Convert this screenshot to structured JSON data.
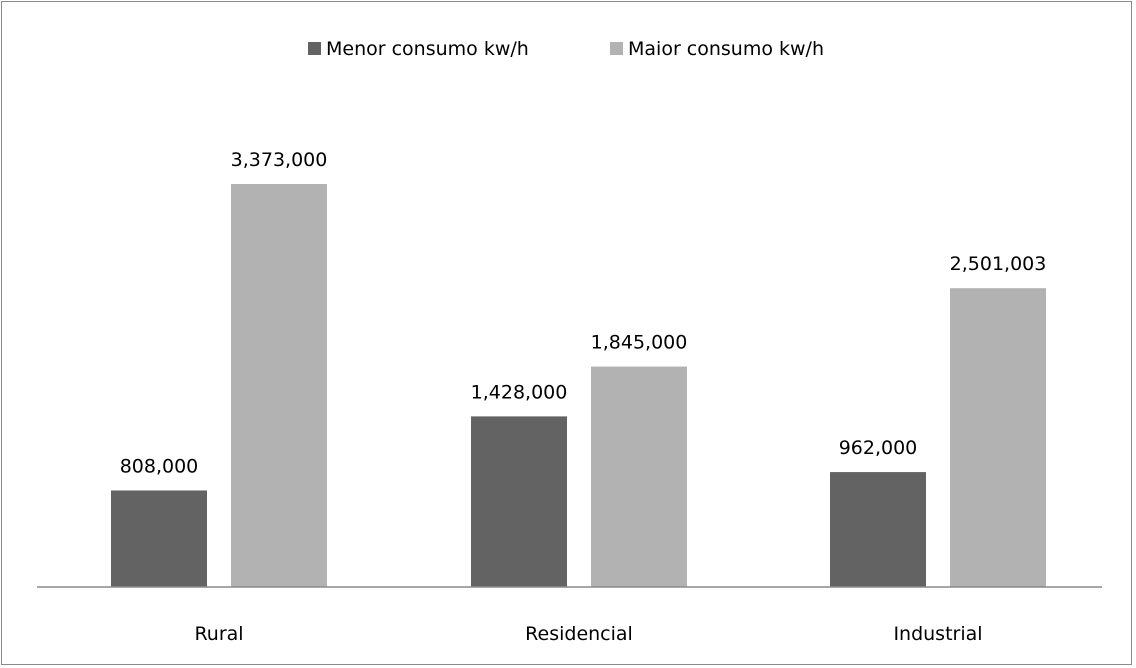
{
  "chart_data": {
    "type": "bar",
    "categories": [
      "Rural",
      "Residencial",
      "Industrial"
    ],
    "series": [
      {
        "name": "Menor consumo kw/h",
        "color": "#636363",
        "values": [
          808000,
          1428000,
          962000
        ],
        "labels": [
          "808,000",
          "1,428,000",
          "962,000"
        ]
      },
      {
        "name": "Maior consumo kw/h",
        "color": "#b2b2b2",
        "values": [
          3373000,
          1845000,
          2501003
        ],
        "labels": [
          "3,373,000",
          "1,845,000",
          "2,501,003"
        ]
      }
    ],
    "legend_position": "top",
    "grid": false,
    "title": "",
    "xlabel": "",
    "ylabel": "",
    "ylim": [
      0,
      3800000
    ],
    "axis_line_color": "#8a8a8a"
  }
}
